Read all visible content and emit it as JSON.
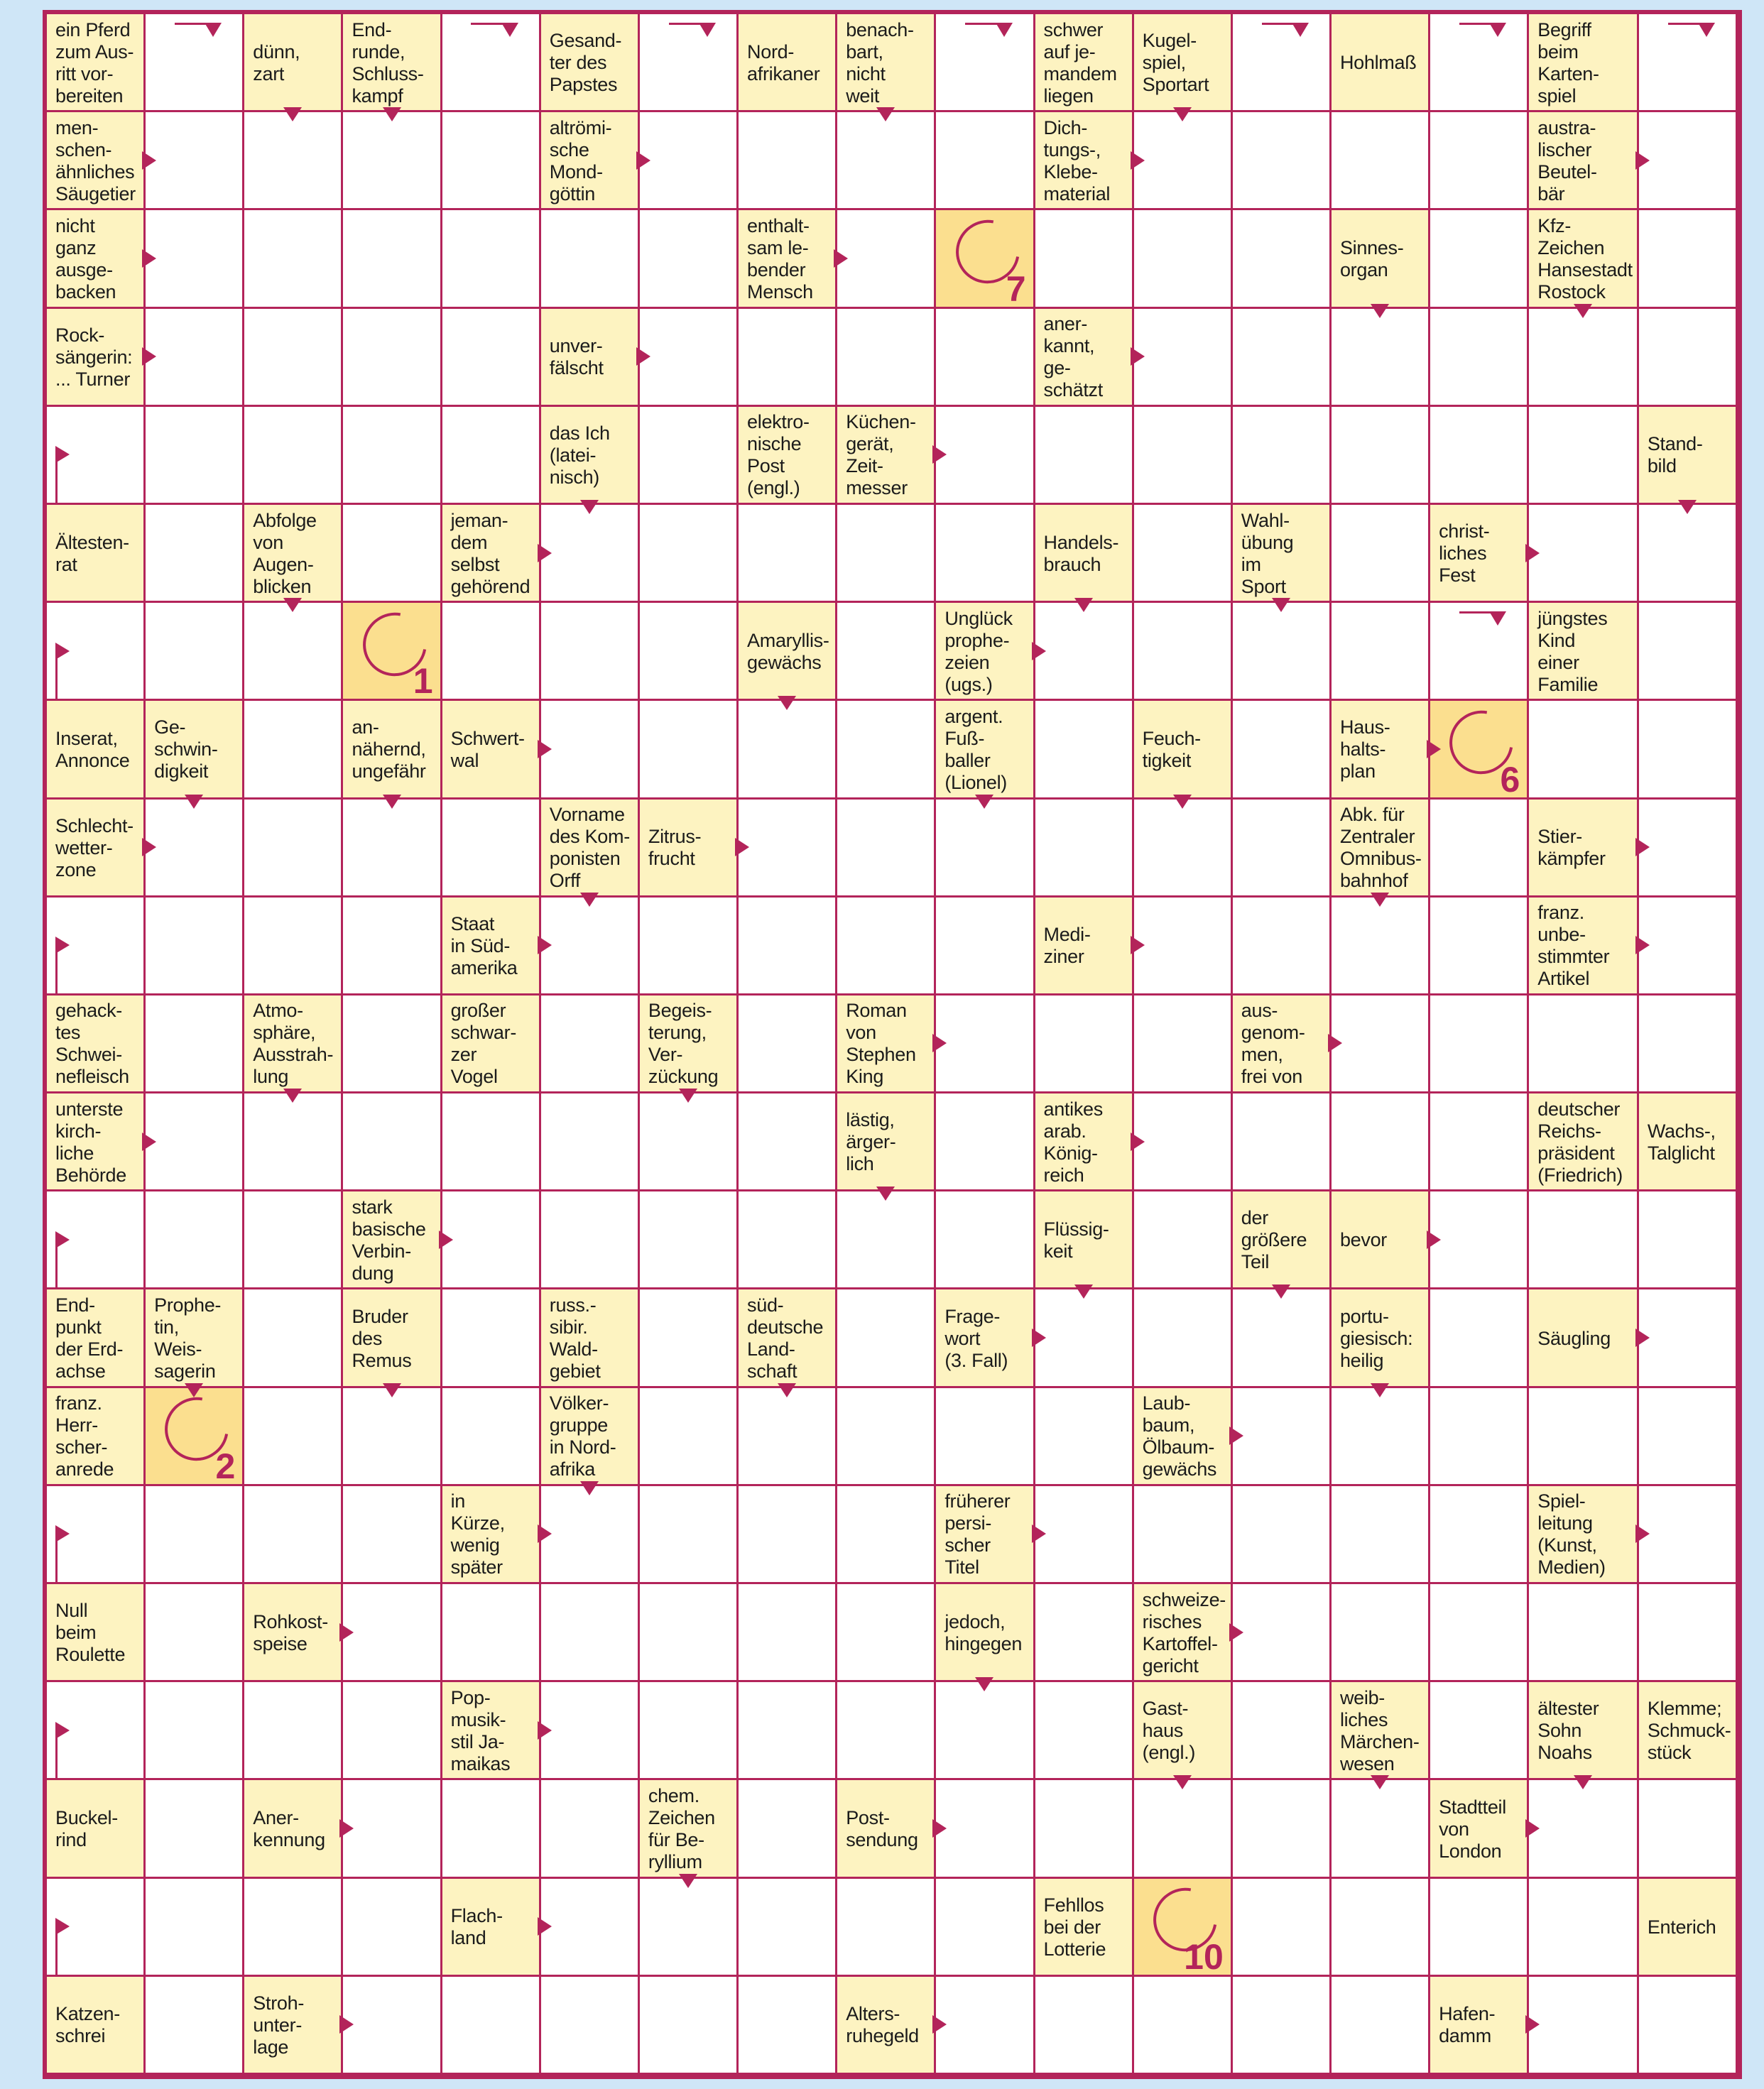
{
  "puzzle": {
    "type": "Schwedenrätsel",
    "cols": 17,
    "rows": 21,
    "colors": {
      "frame": "#b3245a",
      "clue_bg": "#fdf3c1",
      "solution_bg": "#fbdf8f",
      "cell_bg": "#ffffff",
      "page_bg": "#cfe6f7"
    },
    "clues": [
      {
        "r": 0,
        "c": 0,
        "text": "ein Pferd\nzum Aus-\nritt vor-\nbereiten"
      },
      {
        "r": 0,
        "c": 2,
        "text": "dünn,\nzart",
        "arrow": "d"
      },
      {
        "r": 0,
        "c": 3,
        "text": "End-\nrunde,\nSchluss-\nkampf",
        "arrow": "d"
      },
      {
        "r": 0,
        "c": 5,
        "text": "Gesand-\nter des\nPapstes"
      },
      {
        "r": 0,
        "c": 7,
        "text": "Nord-\nafrikaner"
      },
      {
        "r": 0,
        "c": 8,
        "text": "benach-\nbart,\nnicht\nweit",
        "arrow": "d"
      },
      {
        "r": 0,
        "c": 10,
        "text": "schwer\nauf je-\nmandem\nliegen"
      },
      {
        "r": 0,
        "c": 11,
        "text": "Kugel-\nspiel,\nSportart",
        "arrow": "d"
      },
      {
        "r": 0,
        "c": 13,
        "text": "Hohlmaß"
      },
      {
        "r": 0,
        "c": 15,
        "text": "Begriff\nbeim\nKarten-\nspiel"
      },
      {
        "r": 1,
        "c": 0,
        "text": "men-\nschen-\nähnliches\nSäugetier",
        "arrow": "r"
      },
      {
        "r": 1,
        "c": 5,
        "text": "altrömi-\nsche\nMond-\ngöttin",
        "arrow": "r"
      },
      {
        "r": 1,
        "c": 10,
        "text": "Dich-\ntungs-,\nKlebe-\nmaterial",
        "arrow": "r"
      },
      {
        "r": 1,
        "c": 15,
        "text": "austra-\nlischer\nBeutel-\nbär",
        "arrow": "r"
      },
      {
        "r": 2,
        "c": 0,
        "text": "nicht\nganz\nausge-\nbacken",
        "arrow": "r"
      },
      {
        "r": 2,
        "c": 7,
        "text": "enthalt-\nsam le-\nbender\nMensch",
        "arrow": "r"
      },
      {
        "r": 2,
        "c": 13,
        "text": "Sinnes-\norgan",
        "arrow": "d"
      },
      {
        "r": 2,
        "c": 15,
        "text": "Kfz-\nZeichen\nHansestadt\nRostock",
        "arrow": "d"
      },
      {
        "r": 3,
        "c": 0,
        "text": "Rock-\nsängerin:\n... Turner",
        "arrow": "r"
      },
      {
        "r": 3,
        "c": 5,
        "text": "unver-\nfälscht",
        "arrow": "r"
      },
      {
        "r": 3,
        "c": 10,
        "text": "aner-\nkannt,\nge-\nschätzt",
        "arrow": "r"
      },
      {
        "r": 4,
        "c": 5,
        "text": "das Ich\n(latei-\nnisch)",
        "arrow": "d"
      },
      {
        "r": 4,
        "c": 7,
        "text": "elektro-\nnische\nPost\n(engl.)"
      },
      {
        "r": 4,
        "c": 8,
        "text": "Küchen-\ngerät,\nZeit-\nmesser",
        "arrow": "r"
      },
      {
        "r": 4,
        "c": 16,
        "text": "Stand-\nbild",
        "arrow": "d"
      },
      {
        "r": 5,
        "c": 0,
        "text": "Ältesten-\nrat"
      },
      {
        "r": 5,
        "c": 2,
        "text": "Abfolge\nvon\nAugen-\nblicken",
        "arrow": "d"
      },
      {
        "r": 5,
        "c": 4,
        "text": "jeman-\ndem\nselbst\ngehörend",
        "arrow": "r"
      },
      {
        "r": 5,
        "c": 10,
        "text": "Handels-\nbrauch",
        "arrow": "d"
      },
      {
        "r": 5,
        "c": 12,
        "text": "Wahl-\nübung\nim\nSport",
        "arrow": "d"
      },
      {
        "r": 5,
        "c": 14,
        "text": "christ-\nliches\nFest",
        "arrow": "r"
      },
      {
        "r": 6,
        "c": 7,
        "text": "Amaryllis-\ngewächs",
        "arrow": "d"
      },
      {
        "r": 6,
        "c": 9,
        "text": "Unglück\nprophe-\nzeien\n(ugs.)",
        "arrow": "r"
      },
      {
        "r": 6,
        "c": 15,
        "text": "jüngstes\nKind\neiner\nFamilie"
      },
      {
        "r": 7,
        "c": 0,
        "text": "Inserat,\nAnnonce"
      },
      {
        "r": 7,
        "c": 1,
        "text": "Ge-\nschwin-\ndigkeit",
        "arrow": "d"
      },
      {
        "r": 7,
        "c": 3,
        "text": "an-\nnähernd,\nungefähr",
        "arrow": "d"
      },
      {
        "r": 7,
        "c": 4,
        "text": "Schwert-\nwal",
        "arrow": "r"
      },
      {
        "r": 7,
        "c": 9,
        "text": "argent.\nFuß-\nballer\n(Lionel)",
        "arrow": "d"
      },
      {
        "r": 7,
        "c": 11,
        "text": "Feuch-\ntigkeit",
        "arrow": "d"
      },
      {
        "r": 7,
        "c": 13,
        "text": "Haus-\nhalts-\nplan",
        "arrow": "r"
      },
      {
        "r": 8,
        "c": 0,
        "text": "Schlecht-\nwetter-\nzone",
        "arrow": "r"
      },
      {
        "r": 8,
        "c": 5,
        "text": "Vorname\ndes Kom-\nponisten\nOrff",
        "arrow": "d"
      },
      {
        "r": 8,
        "c": 6,
        "text": "Zitrus-\nfrucht",
        "arrow": "r"
      },
      {
        "r": 8,
        "c": 13,
        "text": "Abk. für\nZentraler\nOmnibus-\nbahnhof",
        "arrow": "d"
      },
      {
        "r": 8,
        "c": 15,
        "text": "Stier-\nkämpfer",
        "arrow": "r"
      },
      {
        "r": 9,
        "c": 4,
        "text": "Staat\nin Süd-\namerika",
        "arrow": "r"
      },
      {
        "r": 9,
        "c": 10,
        "text": "Medi-\nziner",
        "arrow": "r"
      },
      {
        "r": 9,
        "c": 15,
        "text": "franz.\nunbe-\nstimmter\nArtikel",
        "arrow": "r"
      },
      {
        "r": 10,
        "c": 0,
        "text": "gehack-\ntes\nSchwei-\nnefleisch"
      },
      {
        "r": 10,
        "c": 2,
        "text": "Atmo-\nsphäre,\nAusstrah-\nlung",
        "arrow": "d"
      },
      {
        "r": 10,
        "c": 4,
        "text": "großer\nschwar-\nzer\nVogel"
      },
      {
        "r": 10,
        "c": 6,
        "text": "Begeis-\nterung,\nVer-\nzückung",
        "arrow": "d"
      },
      {
        "r": 10,
        "c": 8,
        "text": "Roman\nvon\nStephen\nKing",
        "arrow": "r"
      },
      {
        "r": 10,
        "c": 12,
        "text": "aus-\ngenom-\nmen,\nfrei von",
        "arrow": "r"
      },
      {
        "r": 11,
        "c": 0,
        "text": "unterste\nkirch-\nliche\nBehörde",
        "arrow": "r"
      },
      {
        "r": 11,
        "c": 8,
        "text": "lästig,\närger-\nlich",
        "arrow": "d"
      },
      {
        "r": 11,
        "c": 10,
        "text": "antikes\narab.\nKönig-\nreich",
        "arrow": "r"
      },
      {
        "r": 11,
        "c": 15,
        "text": "deutscher\nReichs-\npräsident\n(Friedrich)"
      },
      {
        "r": 11,
        "c": 16,
        "text": "Wachs-,\nTalglicht"
      },
      {
        "r": 12,
        "c": 3,
        "text": "stark\nbasische\nVerbin-\ndung",
        "arrow": "r"
      },
      {
        "r": 12,
        "c": 10,
        "text": "Flüssig-\nkeit",
        "arrow": "d"
      },
      {
        "r": 12,
        "c": 12,
        "text": "der\ngrößere\nTeil",
        "arrow": "d"
      },
      {
        "r": 12,
        "c": 13,
        "text": "bevor",
        "arrow": "r"
      },
      {
        "r": 13,
        "c": 0,
        "text": "End-\npunkt\nder Erd-\nachse"
      },
      {
        "r": 13,
        "c": 1,
        "text": "Prophe-\ntin,\nWeis-\nsagerin",
        "arrow": "d"
      },
      {
        "r": 13,
        "c": 3,
        "text": "Bruder\ndes\nRemus",
        "arrow": "d"
      },
      {
        "r": 13,
        "c": 5,
        "text": "russ.-\nsibir.\nWald-\ngebiet"
      },
      {
        "r": 13,
        "c": 7,
        "text": "süd-\ndeutsche\nLand-\nschaft",
        "arrow": "d"
      },
      {
        "r": 13,
        "c": 9,
        "text": "Frage-\nwort\n(3. Fall)",
        "arrow": "r"
      },
      {
        "r": 13,
        "c": 13,
        "text": "portu-\ngiesisch:\nheilig",
        "arrow": "d"
      },
      {
        "r": 13,
        "c": 15,
        "text": "Säugling",
        "arrow": "r"
      },
      {
        "r": 14,
        "c": 0,
        "text": "franz.\nHerr-\nscher-\nanrede"
      },
      {
        "r": 14,
        "c": 5,
        "text": "Völker-\ngruppe\nin Nord-\nafrika",
        "arrow": "d"
      },
      {
        "r": 14,
        "c": 11,
        "text": "Laub-\nbaum,\nÖlbaum-\ngewächs",
        "arrow": "r"
      },
      {
        "r": 15,
        "c": 4,
        "text": "in\nKürze,\nwenig\nspäter",
        "arrow": "r"
      },
      {
        "r": 15,
        "c": 9,
        "text": "früherer\npersi-\nscher\nTitel",
        "arrow": "r"
      },
      {
        "r": 15,
        "c": 15,
        "text": "Spiel-\nleitung\n(Kunst,\nMedien)",
        "arrow": "r"
      },
      {
        "r": 16,
        "c": 0,
        "text": "Null\nbeim\nRoulette"
      },
      {
        "r": 16,
        "c": 2,
        "text": "Rohkost-\nspeise",
        "arrow": "r"
      },
      {
        "r": 16,
        "c": 9,
        "text": "jedoch,\nhingegen",
        "arrow": "d"
      },
      {
        "r": 16,
        "c": 11,
        "text": "schweize-\nrisches\nKartoffel-\ngericht",
        "arrow": "r"
      },
      {
        "r": 17,
        "c": 4,
        "text": "Pop-\nmusik-\nstil Ja-\nmaikas",
        "arrow": "r"
      },
      {
        "r": 17,
        "c": 11,
        "text": "Gast-\nhaus\n(engl.)",
        "arrow": "d"
      },
      {
        "r": 17,
        "c": 13,
        "text": "weib-\nliches\nMärchen-\nwesen",
        "arrow": "d"
      },
      {
        "r": 17,
        "c": 15,
        "text": "ältester\nSohn\nNoahs",
        "arrow": "d"
      },
      {
        "r": 17,
        "c": 16,
        "text": "Klemme;\nSchmuck-\nstück"
      },
      {
        "r": 18,
        "c": 0,
        "text": "Buckel-\nrind"
      },
      {
        "r": 18,
        "c": 2,
        "text": "Aner-\nkennung",
        "arrow": "r"
      },
      {
        "r": 18,
        "c": 6,
        "text": "chem.\nZeichen\nfür Be-\nryllium",
        "arrow": "d"
      },
      {
        "r": 18,
        "c": 8,
        "text": "Post-\nsendung",
        "arrow": "r"
      },
      {
        "r": 18,
        "c": 14,
        "text": "Stadtteil\nvon\nLondon",
        "arrow": "r"
      },
      {
        "r": 19,
        "c": 4,
        "text": "Flach-\nland",
        "arrow": "r"
      },
      {
        "r": 19,
        "c": 10,
        "text": "Fehllos\nbei der\nLotterie"
      },
      {
        "r": 19,
        "c": 16,
        "text": "Enterich"
      },
      {
        "r": 20,
        "c": 0,
        "text": "Katzen-\nschrei"
      },
      {
        "r": 20,
        "c": 2,
        "text": "Stroh-\nunter-\nlage",
        "arrow": "r"
      },
      {
        "r": 20,
        "c": 8,
        "text": "Alters-\nruhegeld",
        "arrow": "r"
      },
      {
        "r": 20,
        "c": 14,
        "text": "Hafen-\ndamm",
        "arrow": "r"
      }
    ],
    "solution_cells": [
      {
        "r": 2,
        "c": 9,
        "number": "7"
      },
      {
        "r": 6,
        "c": 3,
        "number": "1"
      },
      {
        "r": 7,
        "c": 14,
        "number": "6"
      },
      {
        "r": 14,
        "c": 1,
        "number": "2"
      },
      {
        "r": 19,
        "c": 11,
        "number": "10"
      }
    ],
    "bend_arrows": [
      {
        "r": 4,
        "c": 0
      },
      {
        "r": 6,
        "c": 0
      },
      {
        "r": 9,
        "c": 0
      },
      {
        "r": 12,
        "c": 0
      },
      {
        "r": 15,
        "c": 0
      },
      {
        "r": 17,
        "c": 0
      },
      {
        "r": 19,
        "c": 0
      }
    ],
    "hook_arrows": [
      {
        "r": 0,
        "c": 1
      },
      {
        "r": 0,
        "c": 4
      },
      {
        "r": 0,
        "c": 6
      },
      {
        "r": 0,
        "c": 9
      },
      {
        "r": 0,
        "c": 12
      },
      {
        "r": 0,
        "c": 14
      },
      {
        "r": 0,
        "c": 16
      },
      {
        "r": 6,
        "c": 14
      }
    ]
  }
}
